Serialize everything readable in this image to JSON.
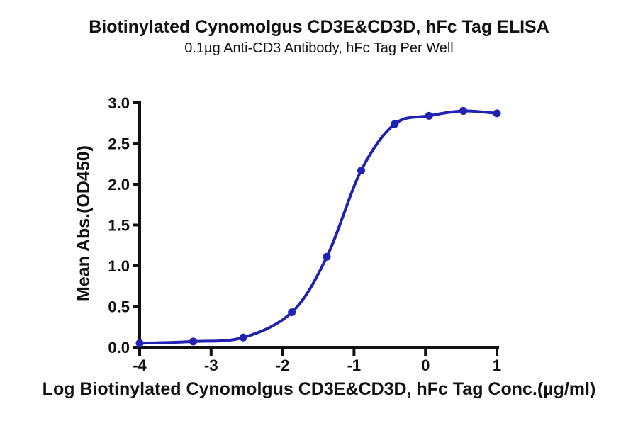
{
  "chart_data": {
    "type": "line",
    "title": "Biotinylated Cynomolgus CD3E&CD3D, hFc Tag ELISA",
    "subtitle": "0.1µg Anti-CD3 Antibody, hFc Tag Per Well",
    "xlabel": "Log Biotinylated Cynomolgus CD3E&CD3D, hFc Tag Conc.(µg/ml)",
    "ylabel": "Mean Abs.(OD450)",
    "xlim": [
      -4,
      1
    ],
    "ylim": [
      0,
      3
    ],
    "grid": false,
    "legend_position": "none",
    "x_ticks": {
      "values": [
        -4,
        -3,
        -2,
        -1,
        0,
        1
      ],
      "labels": [
        "-4",
        "-3",
        "-2",
        "-1",
        "0",
        "1"
      ]
    },
    "y_ticks": {
      "values": [
        0,
        0.5,
        1,
        1.5,
        2,
        2.5,
        3
      ],
      "labels": [
        "0.0",
        "0.5",
        "1.0",
        "1.5",
        "2.0",
        "2.5",
        "3.0"
      ]
    },
    "series": [
      {
        "name": "Biotinylated Cynomolgus CD3E&CD3D, hFc Tag",
        "marker": "circle",
        "curve_style": "sigmoid-fit",
        "color": "#2121b2",
        "x": [
          -4.0,
          -3.25,
          -2.55,
          -1.87,
          -1.38,
          -0.9,
          -0.43,
          0.05,
          0.53,
          1.0
        ],
        "y": [
          0.05,
          0.07,
          0.12,
          0.43,
          1.11,
          2.17,
          2.74,
          2.84,
          2.9,
          2.87
        ]
      }
    ]
  },
  "colors": {
    "accent": "#2121b2",
    "axis": "#111111",
    "text": "#111111",
    "background": "#ffffff"
  }
}
